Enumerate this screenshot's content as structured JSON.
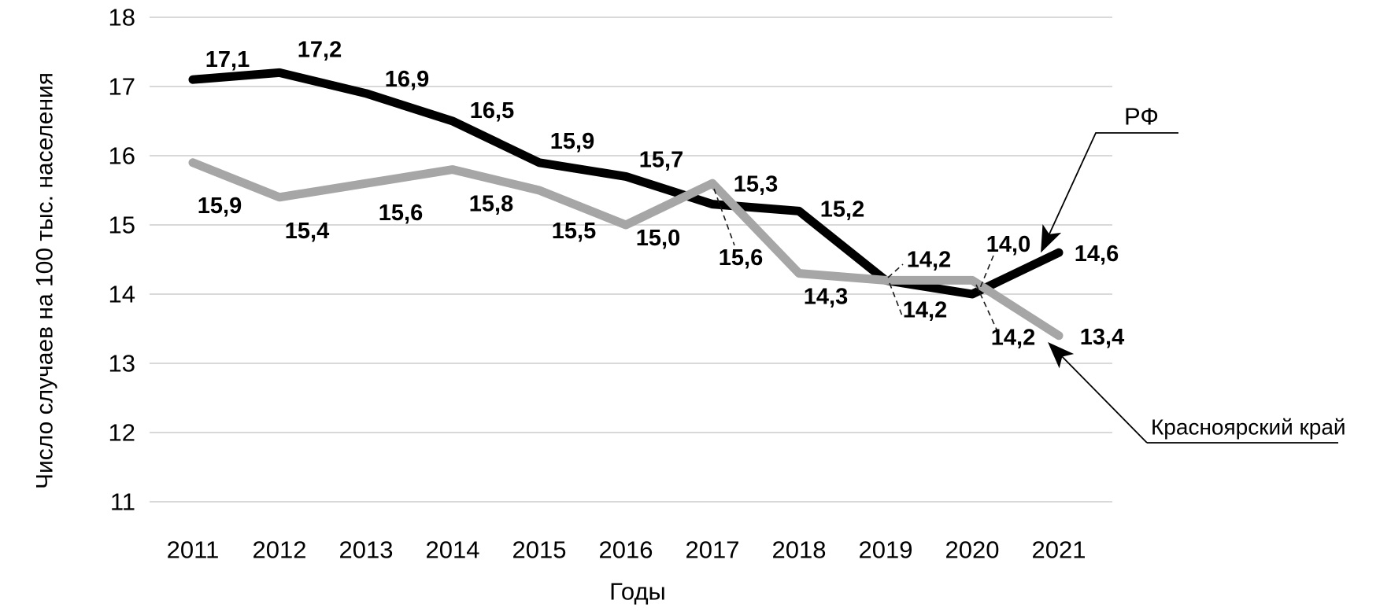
{
  "chart_data": {
    "type": "line",
    "title": "",
    "xlabel": "Годы",
    "ylabel": "Число случаев на 100 тыс. населения",
    "categories": [
      "2011",
      "2012",
      "2013",
      "2014",
      "2015",
      "2016",
      "2017",
      "2018",
      "2019",
      "2020",
      "2021"
    ],
    "y_ticks": [
      "18",
      "17",
      "16",
      "15",
      "14",
      "13",
      "12",
      "11"
    ],
    "ylim": [
      11,
      18
    ],
    "grid": true,
    "legend_position": "callout-arrows",
    "decimal_separator": ",",
    "series": [
      {
        "name": "РФ",
        "color": "#000000",
        "values": [
          17.1,
          17.2,
          16.9,
          16.5,
          15.9,
          15.7,
          15.3,
          15.2,
          14.2,
          14.0,
          14.6
        ],
        "point_labels": [
          "17,1",
          "17,2",
          "16,9",
          "16,5",
          "15,9",
          "15,7",
          "15,3",
          "15,2",
          "14,2",
          "14,0",
          "14,6"
        ]
      },
      {
        "name": "Красноярский край",
        "color": "#a6a6a6",
        "values": [
          15.9,
          15.4,
          15.6,
          15.8,
          15.5,
          15.0,
          15.6,
          14.3,
          14.2,
          14.2,
          13.4
        ],
        "point_labels": [
          "15,9",
          "15,4",
          "15,6",
          "15,8",
          "15,5",
          "15,0",
          "15,6",
          "14,3",
          "14,2",
          "14,2",
          "13,4"
        ]
      }
    ],
    "callouts": [
      {
        "text": "РФ",
        "target_series": "РФ"
      },
      {
        "text": "Красноярский край",
        "target_series": "Красноярский край"
      }
    ]
  },
  "colors": {
    "gridline": "#d9d9d9",
    "text": "#000000",
    "rf_line": "#000000",
    "kk_line": "#a6a6a6",
    "leader_dash": "#1a1a1a"
  }
}
